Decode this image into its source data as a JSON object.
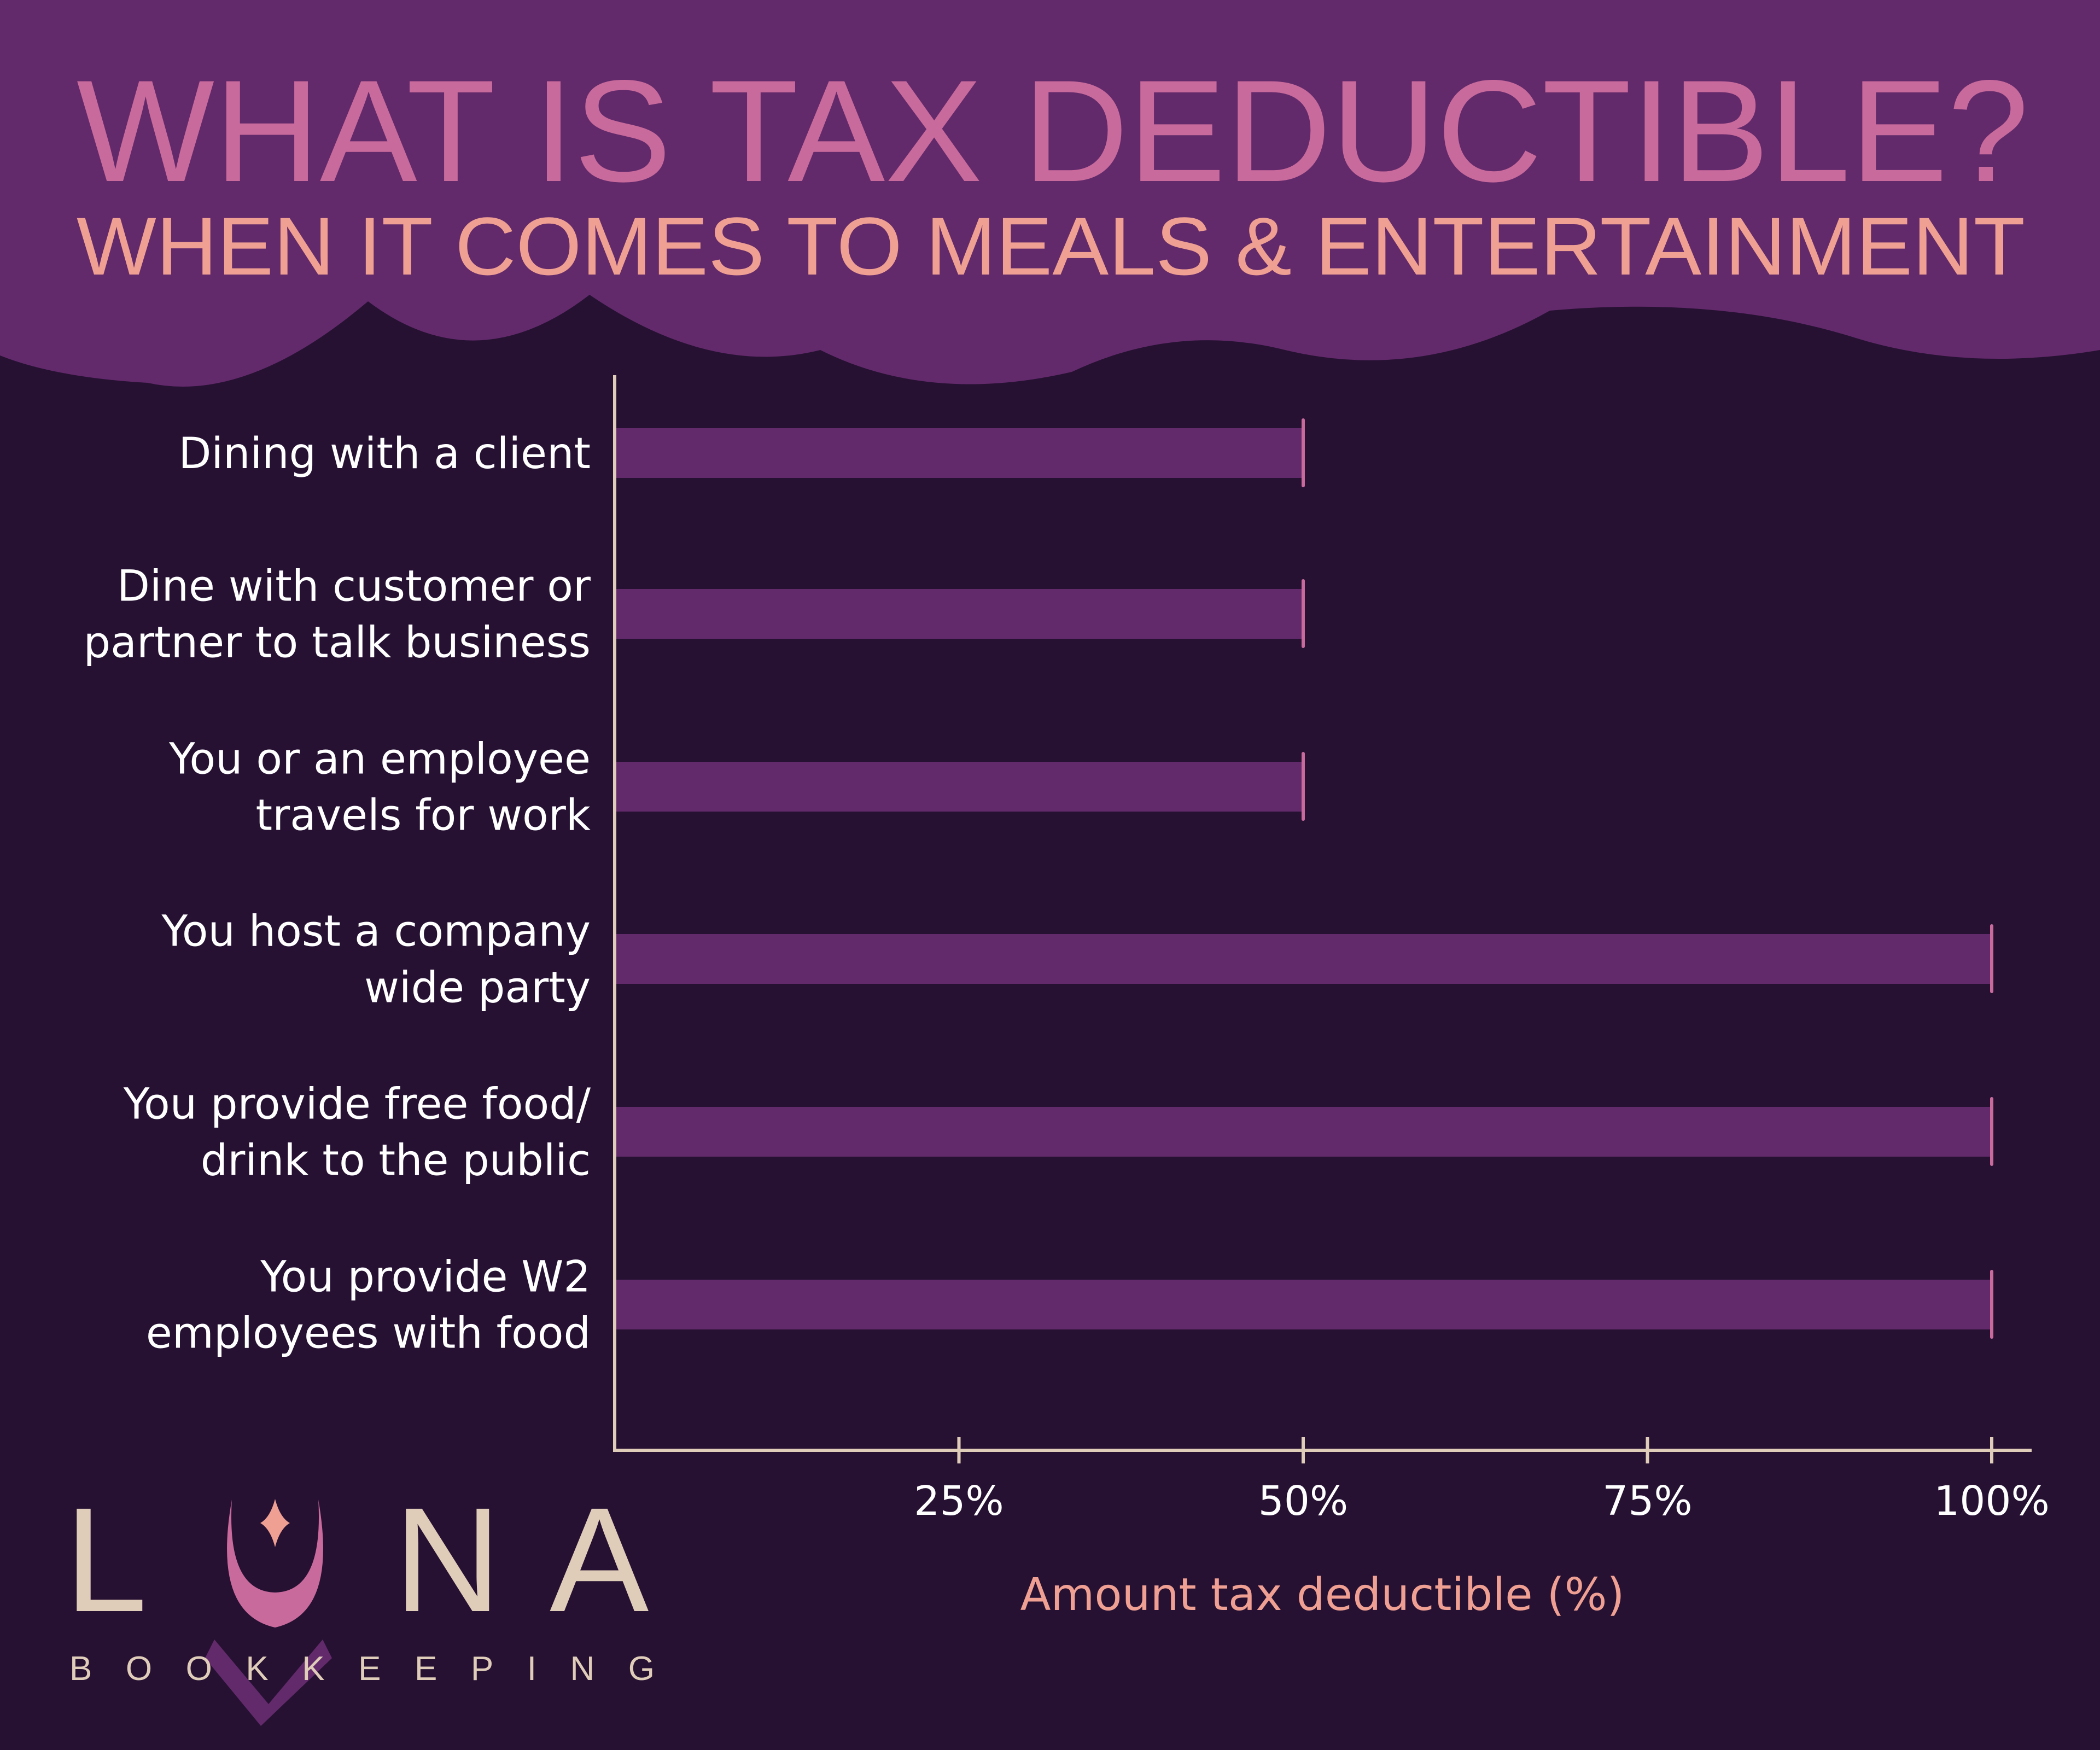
{
  "header": {
    "title": "WHAT IS TAX DEDUCTIBLE?",
    "subtitle": "WHEN IT COMES TO MEALS & ENTERTAINMENT"
  },
  "chart_data": {
    "type": "bar",
    "orientation": "horizontal",
    "categories": [
      [
        "Dining with a client"
      ],
      [
        "Dine with customer or",
        "partner to talk business"
      ],
      [
        "You or an employee",
        "travels for work"
      ],
      [
        "You host a company",
        "wide party"
      ],
      [
        "You provide free food/",
        "drink to the public"
      ],
      [
        "You provide W2",
        "employees with food"
      ]
    ],
    "values": [
      50,
      50,
      50,
      100,
      100,
      100
    ],
    "xlabel": "Amount tax deductible (%)",
    "ylabel": "",
    "xlim": [
      0,
      100
    ],
    "xticks": [
      25,
      50,
      75,
      100
    ],
    "xtick_labels": [
      "25%",
      "50%",
      "75%",
      "100%"
    ],
    "grid": false,
    "colors": {
      "bar": "#632a6b",
      "bar_end": "#c96a9d",
      "axis": "#e0cdb9"
    }
  },
  "logo": {
    "letters": [
      "L",
      "N",
      "A"
    ],
    "wordmark": "LUNA",
    "tagline": "BOOKKEEPING"
  },
  "colors": {
    "background": "#261133",
    "header": "#632a6b",
    "title": "#c96a9d",
    "subtitle": "#f0a093"
  }
}
